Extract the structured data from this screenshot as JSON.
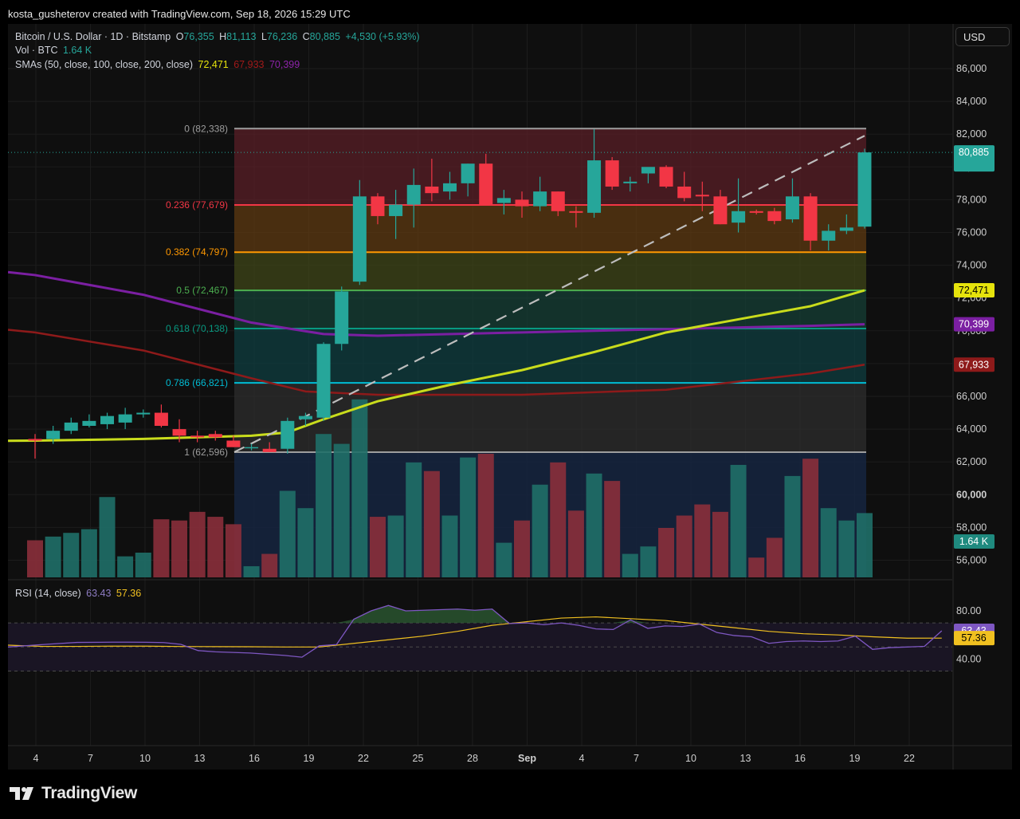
{
  "header": {
    "text": "kosta_gusheterov created with TradingView.com, Sep 18, 2026 15:29 UTC"
  },
  "legend": {
    "symbol": "Bitcoin / U.S. Dollar · 1D · Bitstamp",
    "o_label": "O",
    "o": "76,355",
    "h_label": "H",
    "h": "81,113",
    "l_label": "L",
    "l": "76,236",
    "c_label": "C",
    "c": "80,885",
    "change": "+4,530 (+5.93%)",
    "vol_label": "Vol · BTC",
    "vol": "1.64 K",
    "sma_label": "SMAs (50, close, 100, close, 200, close)",
    "sma50": "72,471",
    "sma100": "67,933",
    "sma200": "70,399",
    "rsi_label": "RSI (14, close)",
    "rsi": "63.43",
    "rsi_ma": "57.36"
  },
  "currency": "USD",
  "brand": "TradingView",
  "colors": {
    "up": "#26a69a",
    "down": "#f23645",
    "sma50": "#c9dc1c",
    "sma100": "#8e1a1a",
    "sma200": "#7b1fa2",
    "rsi": "#7e57c2",
    "rsi_ma": "#f0c020"
  },
  "chart_data": {
    "type": "candlestick",
    "title": "Bitcoin / U.S. Dollar · 1D · Bitstamp",
    "x_tick_labels": [
      "4",
      "7",
      "10",
      "13",
      "16",
      "19",
      "22",
      "25",
      "28",
      "Sep",
      "4",
      "7",
      "10",
      "13",
      "16",
      "19",
      "22"
    ],
    "y_tick_labels": [
      "56,000",
      "58,000",
      "60,000",
      "62,000",
      "64,000",
      "66,000",
      "68,000",
      "70,000",
      "72,000",
      "74,000",
      "76,000",
      "78,000",
      "80,000",
      "82,000",
      "84,000",
      "86,000"
    ],
    "ylim": [
      55000,
      87000
    ],
    "candles": [
      {
        "o": 63400,
        "h": 63700,
        "l": 62200,
        "c": 63300
      },
      {
        "o": 63400,
        "h": 64200,
        "l": 63100,
        "c": 63900
      },
      {
        "o": 63900,
        "h": 64700,
        "l": 63700,
        "c": 64400
      },
      {
        "o": 64200,
        "h": 64900,
        "l": 64100,
        "c": 64500
      },
      {
        "o": 64300,
        "h": 65000,
        "l": 64000,
        "c": 64800
      },
      {
        "o": 64400,
        "h": 65300,
        "l": 64000,
        "c": 64900
      },
      {
        "o": 64900,
        "h": 65200,
        "l": 64700,
        "c": 65000
      },
      {
        "o": 65000,
        "h": 65500,
        "l": 64100,
        "c": 64200
      },
      {
        "o": 64000,
        "h": 64600,
        "l": 63200,
        "c": 63600
      },
      {
        "o": 63600,
        "h": 63900,
        "l": 63200,
        "c": 63500
      },
      {
        "o": 63700,
        "h": 63900,
        "l": 63300,
        "c": 63500
      },
      {
        "o": 63300,
        "h": 63600,
        "l": 62900,
        "c": 62900
      },
      {
        "o": 62900,
        "h": 63100,
        "l": 62700,
        "c": 62900
      },
      {
        "o": 62800,
        "h": 63200,
        "l": 62600,
        "c": 62600
      },
      {
        "o": 62800,
        "h": 64700,
        "l": 62500,
        "c": 64500
      },
      {
        "o": 64600,
        "h": 65000,
        "l": 64200,
        "c": 64800
      },
      {
        "o": 64700,
        "h": 69300,
        "l": 64500,
        "c": 69200
      },
      {
        "o": 69200,
        "h": 72700,
        "l": 68800,
        "c": 72400
      },
      {
        "o": 73000,
        "h": 79200,
        "l": 72800,
        "c": 78200
      },
      {
        "o": 78200,
        "h": 78400,
        "l": 76500,
        "c": 77000
      },
      {
        "o": 77000,
        "h": 78600,
        "l": 75600,
        "c": 77700
      },
      {
        "o": 77700,
        "h": 79900,
        "l": 76300,
        "c": 78900
      },
      {
        "o": 78800,
        "h": 80500,
        "l": 77900,
        "c": 78400
      },
      {
        "o": 78500,
        "h": 79700,
        "l": 78000,
        "c": 79000
      },
      {
        "o": 79000,
        "h": 80200,
        "l": 78200,
        "c": 80200
      },
      {
        "o": 80200,
        "h": 80800,
        "l": 77900,
        "c": 77700
      },
      {
        "o": 77800,
        "h": 78600,
        "l": 77100,
        "c": 78100
      },
      {
        "o": 78000,
        "h": 78500,
        "l": 76900,
        "c": 77600
      },
      {
        "o": 77600,
        "h": 79400,
        "l": 77300,
        "c": 78500
      },
      {
        "o": 78500,
        "h": 78500,
        "l": 77000,
        "c": 77300
      },
      {
        "o": 77300,
        "h": 77600,
        "l": 76300,
        "c": 77200
      },
      {
        "o": 77200,
        "h": 82300,
        "l": 76900,
        "c": 80400
      },
      {
        "o": 80400,
        "h": 80600,
        "l": 78600,
        "c": 78800
      },
      {
        "o": 79000,
        "h": 79400,
        "l": 78500,
        "c": 79100
      },
      {
        "o": 79600,
        "h": 79800,
        "l": 79000,
        "c": 80000
      },
      {
        "o": 80000,
        "h": 80100,
        "l": 78700,
        "c": 78800
      },
      {
        "o": 78800,
        "h": 79700,
        "l": 77900,
        "c": 78100
      },
      {
        "o": 78300,
        "h": 79100,
        "l": 77300,
        "c": 78200
      },
      {
        "o": 78200,
        "h": 78600,
        "l": 76500,
        "c": 76500
      },
      {
        "o": 76600,
        "h": 79300,
        "l": 76000,
        "c": 77300
      },
      {
        "o": 77300,
        "h": 77400,
        "l": 77100,
        "c": 77200
      },
      {
        "o": 77300,
        "h": 77500,
        "l": 76500,
        "c": 76700
      },
      {
        "o": 76800,
        "h": 79300,
        "l": 76600,
        "c": 78200
      },
      {
        "o": 78200,
        "h": 78400,
        "l": 74900,
        "c": 75500
      },
      {
        "o": 75500,
        "h": 76500,
        "l": 74900,
        "c": 76100
      },
      {
        "o": 76100,
        "h": 77100,
        "l": 75900,
        "c": 76300
      },
      {
        "o": 76355,
        "h": 81113,
        "l": 76236,
        "c": 80885
      }
    ],
    "volume": [
      3.0,
      3.3,
      3.6,
      3.9,
      6.5,
      1.7,
      2.0,
      4.7,
      4.6,
      5.3,
      4.9,
      4.3,
      0.9,
      1.9,
      7.0,
      5.6,
      11.6,
      10.8,
      14.4,
      4.9,
      5.0,
      9.3,
      8.6,
      5.0,
      9.7,
      10.0,
      2.8,
      4.6,
      7.5,
      9.3,
      5.4,
      8.4,
      7.8,
      1.9,
      2.5,
      4.0,
      5.0,
      5.9,
      5.3,
      9.1,
      1.6,
      3.2,
      8.2,
      9.6,
      5.6,
      4.6,
      5.2
    ],
    "fib": [
      {
        "level": "0",
        "price": 82338,
        "label": "0 (82,338)"
      },
      {
        "level": "0.236",
        "price": 77679,
        "label": "0.236 (77,679)"
      },
      {
        "level": "0.382",
        "price": 74797,
        "label": "0.382 (74,797)"
      },
      {
        "level": "0.5",
        "price": 72467,
        "label": "0.5 (72,467)"
      },
      {
        "level": "0.618",
        "price": 70138,
        "label": "0.618 (70,138)"
      },
      {
        "level": "0.786",
        "price": 66821,
        "label": "0.786 (66,821)"
      },
      {
        "level": "1",
        "price": 62596,
        "label": "1 (62,596)"
      }
    ],
    "sma50": [
      [
        0,
        63300
      ],
      [
        6,
        63400
      ],
      [
        12,
        63600
      ],
      [
        14,
        63800
      ],
      [
        16,
        64600
      ],
      [
        19,
        65700
      ],
      [
        23,
        66700
      ],
      [
        27,
        67600
      ],
      [
        31,
        68700
      ],
      [
        35,
        69900
      ],
      [
        39,
        70700
      ],
      [
        43,
        71500
      ],
      [
        46,
        72471
      ]
    ],
    "sma100": [
      [
        0,
        69900
      ],
      [
        6,
        68800
      ],
      [
        12,
        67100
      ],
      [
        15,
        66300
      ],
      [
        19,
        66100
      ],
      [
        27,
        66100
      ],
      [
        35,
        66400
      ],
      [
        43,
        67400
      ],
      [
        46,
        67933
      ]
    ],
    "sma200": [
      [
        0,
        73400
      ],
      [
        6,
        72200
      ],
      [
        12,
        70500
      ],
      [
        16,
        69800
      ],
      [
        19,
        69700
      ],
      [
        27,
        69900
      ],
      [
        35,
        70100
      ],
      [
        43,
        70300
      ],
      [
        46,
        70399
      ]
    ],
    "rsi_axis_labels": [
      "80.00",
      "40.00"
    ],
    "rsi_bands": [
      70,
      50,
      30
    ],
    "rsi": [
      [
        0,
        50
      ],
      [
        2,
        52
      ],
      [
        4,
        53.8
      ],
      [
        6,
        54
      ],
      [
        7,
        54
      ],
      [
        8,
        53.9
      ],
      [
        9,
        53.7
      ],
      [
        10,
        52.2
      ],
      [
        11,
        47
      ],
      [
        12,
        46
      ],
      [
        13,
        45.5
      ],
      [
        14,
        45
      ],
      [
        15,
        44
      ],
      [
        16,
        43
      ],
      [
        17,
        41.5
      ],
      [
        18,
        51
      ],
      [
        19,
        52
      ],
      [
        20,
        73
      ],
      [
        21,
        80
      ],
      [
        22,
        84.5
      ],
      [
        23,
        80
      ],
      [
        24,
        80.5
      ],
      [
        25,
        81
      ],
      [
        26,
        81.5
      ],
      [
        27,
        80.5
      ],
      [
        28,
        81.5
      ],
      [
        29,
        69.5
      ],
      [
        30,
        70
      ],
      [
        31,
        68.5
      ],
      [
        32,
        70
      ],
      [
        33,
        68
      ],
      [
        34,
        65
      ],
      [
        35,
        64.5
      ],
      [
        36,
        72.5
      ],
      [
        37,
        65.5
      ],
      [
        38,
        67.5
      ],
      [
        39,
        67
      ],
      [
        40,
        69
      ],
      [
        41,
        62
      ],
      [
        42,
        59.5
      ],
      [
        43,
        58.5
      ],
      [
        44,
        53
      ],
      [
        45,
        54.5
      ],
      [
        46,
        55
      ],
      [
        47,
        54.5
      ],
      [
        48,
        55
      ],
      [
        49,
        59
      ],
      [
        50,
        48
      ],
      [
        51,
        49.5
      ],
      [
        52,
        50
      ],
      [
        53,
        50.5
      ],
      [
        54,
        63.43
      ]
    ],
    "rsi_ma": [
      [
        0,
        51.5
      ],
      [
        2,
        50.5
      ],
      [
        4,
        50.5
      ],
      [
        6,
        50.7
      ],
      [
        8,
        50.7
      ],
      [
        10,
        50.4
      ],
      [
        12,
        50.3
      ],
      [
        14,
        50.2
      ],
      [
        16,
        50
      ],
      [
        18,
        50
      ],
      [
        20,
        53
      ],
      [
        22,
        56
      ],
      [
        24,
        59
      ],
      [
        26,
        63
      ],
      [
        28,
        68
      ],
      [
        30,
        71
      ],
      [
        32,
        74
      ],
      [
        34,
        75
      ],
      [
        36,
        73.5
      ],
      [
        38,
        72
      ],
      [
        40,
        69
      ],
      [
        42,
        66
      ],
      [
        44,
        63
      ],
      [
        46,
        61
      ],
      [
        48,
        60
      ],
      [
        50,
        58.5
      ],
      [
        52,
        57.3
      ],
      [
        54,
        57.36
      ]
    ]
  }
}
